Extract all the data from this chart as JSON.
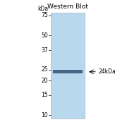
{
  "title": "Western Blot",
  "kda_label": "kDa",
  "band_annotation": "≈24kDa",
  "markers": [
    75,
    50,
    37,
    25,
    20,
    15,
    10
  ],
  "band_kda": 24,
  "gel_color": "#b8d8ee",
  "band_color": "#3a5a7a",
  "background_color": "#ffffff",
  "title_fontsize": 6.5,
  "marker_fontsize": 5.5,
  "label_fontsize": 5.5
}
